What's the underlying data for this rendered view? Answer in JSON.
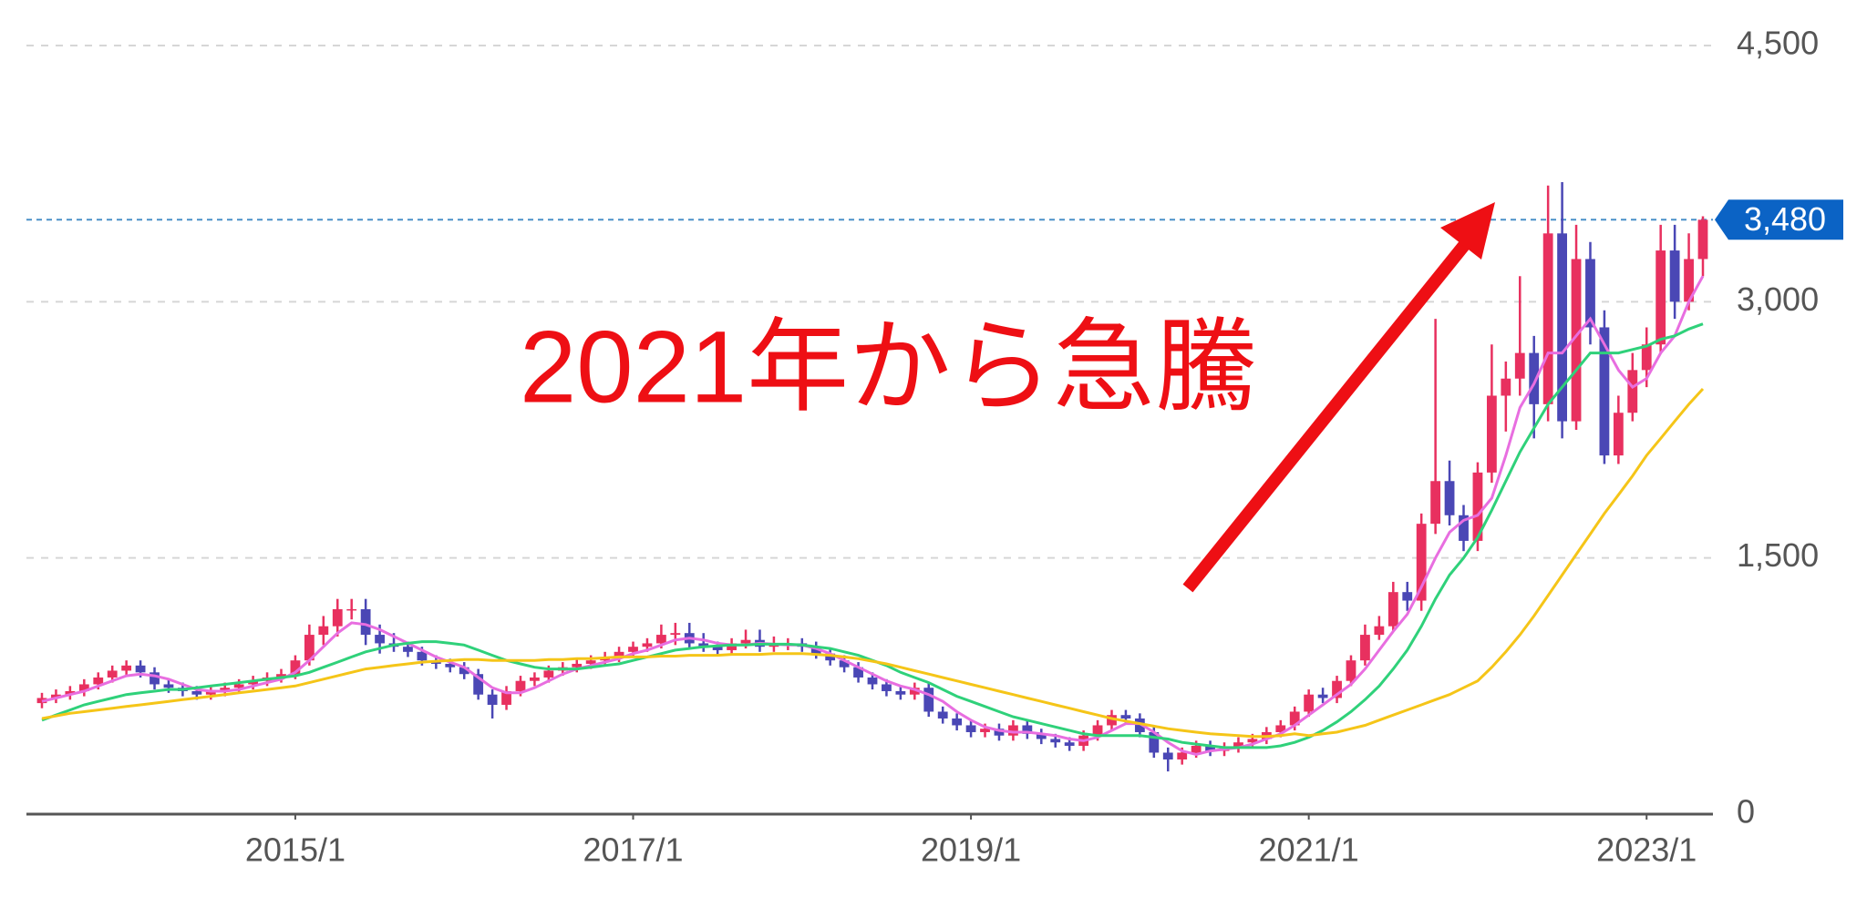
{
  "chart_data": {
    "type": "candlestick",
    "annotation": "2021年から急騰",
    "categories": [
      null,
      null,
      null,
      null,
      null,
      null,
      null,
      null,
      null,
      null,
      null,
      null,
      null,
      null,
      null,
      null,
      null,
      null,
      "2015/1",
      null,
      null,
      null,
      null,
      null,
      null,
      null,
      null,
      null,
      null,
      null,
      null,
      null,
      null,
      null,
      null,
      null,
      null,
      null,
      null,
      null,
      null,
      null,
      "2017/1",
      null,
      null,
      null,
      null,
      null,
      null,
      null,
      null,
      null,
      null,
      null,
      null,
      null,
      null,
      null,
      null,
      null,
      null,
      null,
      null,
      null,
      null,
      null,
      "2019/1",
      null,
      null,
      null,
      null,
      null,
      null,
      null,
      null,
      null,
      null,
      null,
      null,
      null,
      null,
      null,
      null,
      null,
      null,
      null,
      null,
      null,
      null,
      null,
      "2021/1",
      null,
      null,
      null,
      null,
      null,
      null,
      null,
      null,
      null,
      null,
      null,
      null,
      null,
      null,
      null,
      null,
      null,
      null,
      null,
      null,
      null,
      null,
      null,
      "2023/1",
      null,
      null,
      null,
      null
    ],
    "open": [
      650,
      680,
      700,
      720,
      760,
      800,
      840,
      870,
      830,
      760,
      740,
      720,
      700,
      720,
      740,
      760,
      780,
      800,
      820,
      900,
      1050,
      1100,
      1200,
      1200,
      1050,
      1000,
      980,
      950,
      900,
      880,
      860,
      820,
      700,
      640,
      720,
      780,
      800,
      840,
      860,
      880,
      900,
      920,
      950,
      980,
      1000,
      1050,
      1060,
      1000,
      980,
      960,
      1000,
      1020,
      980,
      990,
      1000,
      980,
      940,
      900,
      860,
      800,
      760,
      720,
      700,
      740,
      600,
      560,
      520,
      480,
      500,
      460,
      520,
      470,
      440,
      420,
      400,
      460,
      520,
      580,
      560,
      480,
      360,
      320,
      360,
      400,
      370,
      390,
      420,
      440,
      480,
      520,
      600,
      700,
      680,
      780,
      900,
      1050,
      1100,
      1300,
      1250,
      1700,
      1950,
      1750,
      1600,
      2000,
      2450,
      2550,
      2700,
      2400,
      3400,
      2300,
      3250,
      2850,
      2100,
      2350,
      2600,
      2750,
      3300,
      3000,
      3250
    ],
    "high": [
      710,
      730,
      750,
      790,
      830,
      870,
      900,
      900,
      860,
      790,
      770,
      750,
      750,
      770,
      790,
      810,
      830,
      850,
      930,
      1110,
      1160,
      1260,
      1260,
      1260,
      1110,
      1060,
      1010,
      980,
      930,
      910,
      890,
      850,
      730,
      750,
      810,
      830,
      870,
      890,
      910,
      930,
      950,
      980,
      1010,
      1030,
      1110,
      1120,
      1120,
      1060,
      1010,
      1030,
      1080,
      1080,
      1040,
      1030,
      1030,
      1010,
      970,
      930,
      890,
      830,
      790,
      750,
      770,
      770,
      630,
      590,
      550,
      530,
      530,
      550,
      550,
      500,
      470,
      450,
      490,
      550,
      610,
      610,
      590,
      510,
      390,
      390,
      430,
      430,
      420,
      450,
      470,
      510,
      550,
      630,
      730,
      740,
      810,
      930,
      1110,
      1160,
      1360,
      1360,
      1760,
      2900,
      2070,
      1810,
      2060,
      2750,
      2650,
      3150,
      2800,
      3680,
      3700,
      3450,
      3350,
      2950,
      2450,
      2700,
      2850,
      3450,
      3450,
      3400,
      3500
    ],
    "low": [
      620,
      650,
      670,
      690,
      730,
      770,
      810,
      800,
      730,
      710,
      690,
      670,
      670,
      690,
      710,
      730,
      750,
      770,
      790,
      870,
      990,
      1040,
      1140,
      990,
      940,
      950,
      920,
      870,
      850,
      830,
      790,
      670,
      560,
      610,
      690,
      750,
      770,
      810,
      830,
      850,
      870,
      890,
      920,
      950,
      970,
      990,
      970,
      950,
      930,
      930,
      970,
      950,
      950,
      960,
      950,
      910,
      870,
      830,
      770,
      730,
      690,
      670,
      670,
      570,
      530,
      490,
      450,
      450,
      430,
      430,
      440,
      410,
      390,
      370,
      370,
      430,
      490,
      530,
      450,
      330,
      250,
      290,
      330,
      340,
      340,
      360,
      390,
      410,
      450,
      490,
      570,
      650,
      650,
      750,
      870,
      1020,
      1070,
      1190,
      1190,
      1640,
      1690,
      1540,
      1540,
      1940,
      2240,
      2450,
      2200,
      2300,
      2200,
      2250,
      2750,
      2050,
      2050,
      2300,
      2500,
      2700,
      2900,
      2950,
      3150
    ],
    "close": [
      680,
      700,
      720,
      760,
      800,
      840,
      870,
      830,
      760,
      740,
      720,
      700,
      720,
      740,
      760,
      780,
      800,
      820,
      900,
      1050,
      1100,
      1200,
      1200,
      1050,
      1000,
      980,
      950,
      900,
      880,
      860,
      820,
      700,
      640,
      720,
      780,
      800,
      840,
      860,
      880,
      900,
      920,
      950,
      980,
      1000,
      1050,
      1060,
      1000,
      980,
      960,
      1000,
      1020,
      980,
      990,
      1000,
      980,
      940,
      900,
      860,
      800,
      760,
      720,
      700,
      740,
      600,
      560,
      520,
      480,
      500,
      460,
      520,
      470,
      440,
      420,
      400,
      460,
      520,
      580,
      560,
      480,
      360,
      320,
      360,
      400,
      370,
      390,
      420,
      440,
      480,
      520,
      600,
      700,
      680,
      780,
      900,
      1050,
      1100,
      1300,
      1250,
      1700,
      1950,
      1750,
      1600,
      2000,
      2450,
      2550,
      2700,
      2400,
      3400,
      2300,
      3250,
      2850,
      2100,
      2350,
      2600,
      2750,
      3300,
      3000,
      3250,
      3480
    ],
    "up_color": "#e8305f",
    "down_color": "#4a47b5",
    "series": [
      {
        "color": "#e86ee0",
        "values": [
          660,
          680,
          700,
          720,
          750,
          780,
          810,
          820,
          810,
          790,
          760,
          730,
          720,
          720,
          730,
          750,
          770,
          790,
          830,
          900,
          980,
          1060,
          1120,
          1110,
          1080,
          1040,
          1000,
          960,
          920,
          890,
          860,
          800,
          740,
          710,
          710,
          740,
          780,
          820,
          850,
          870,
          890,
          910,
          940,
          960,
          990,
          1020,
          1030,
          1020,
          1000,
          990,
          990,
          1000,
          995,
          990,
          990,
          970,
          940,
          900,
          860,
          820,
          780,
          750,
          730,
          700,
          660,
          600,
          550,
          510,
          490,
          480,
          480,
          470,
          460,
          440,
          430,
          450,
          490,
          530,
          530,
          480,
          420,
          370,
          350,
          370,
          380,
          390,
          410,
          440,
          470,
          520,
          580,
          640,
          700,
          760,
          850,
          960,
          1070,
          1170,
          1330,
          1500,
          1650,
          1720,
          1750,
          1850,
          2100,
          2380,
          2520,
          2700,
          2700,
          2800,
          2900,
          2750,
          2600,
          2500,
          2550,
          2700,
          2800,
          3000,
          3150
        ]
      },
      {
        "color": "#2fd17a",
        "values": [
          550,
          580,
          610,
          640,
          660,
          680,
          700,
          710,
          720,
          730,
          730,
          740,
          750,
          760,
          770,
          780,
          790,
          800,
          810,
          830,
          860,
          890,
          920,
          950,
          970,
          990,
          1000,
          1010,
          1010,
          1000,
          990,
          960,
          930,
          900,
          880,
          860,
          850,
          850,
          850,
          860,
          870,
          880,
          900,
          920,
          940,
          960,
          970,
          980,
          985,
          990,
          990,
          995,
          995,
          995,
          990,
          980,
          970,
          950,
          930,
          900,
          870,
          830,
          800,
          770,
          730,
          690,
          660,
          630,
          600,
          570,
          550,
          530,
          510,
          490,
          470,
          460,
          460,
          460,
          460,
          450,
          440,
          420,
          410,
          400,
          390,
          390,
          390,
          390,
          400,
          420,
          450,
          490,
          540,
          600,
          670,
          750,
          850,
          960,
          1100,
          1260,
          1400,
          1500,
          1620,
          1780,
          1950,
          2120,
          2260,
          2400,
          2500,
          2600,
          2700,
          2700,
          2700,
          2720,
          2740,
          2780,
          2800,
          2840,
          2870
        ]
      },
      {
        "color": "#f5c518",
        "values": [
          560,
          575,
          590,
          600,
          610,
          620,
          630,
          640,
          650,
          660,
          670,
          680,
          690,
          700,
          710,
          720,
          730,
          740,
          750,
          770,
          790,
          810,
          830,
          850,
          860,
          870,
          880,
          890,
          895,
          900,
          905,
          905,
          900,
          900,
          900,
          900,
          905,
          905,
          910,
          910,
          915,
          920,
          920,
          920,
          925,
          925,
          930,
          930,
          930,
          935,
          935,
          935,
          940,
          940,
          940,
          935,
          930,
          920,
          910,
          895,
          880,
          860,
          840,
          820,
          800,
          780,
          760,
          740,
          720,
          700,
          680,
          660,
          640,
          620,
          600,
          580,
          560,
          545,
          530,
          515,
          500,
          490,
          480,
          470,
          465,
          460,
          455,
          455,
          460,
          470,
          460,
          470,
          480,
          500,
          520,
          550,
          580,
          610,
          640,
          670,
          700,
          740,
          780,
          860,
          950,
          1050,
          1160,
          1280,
          1400,
          1520,
          1640,
          1760,
          1870,
          1980,
          2100,
          2200,
          2300,
          2400,
          2490
        ]
      }
    ],
    "ylim": [
      0,
      4500
    ],
    "yticks": [
      0,
      {
        "value": 1500,
        "label": "1,500"
      },
      {
        "value": 3000,
        "label": "3,000"
      },
      {
        "value": 4500,
        "label": "4,500"
      }
    ],
    "grid": true,
    "last_price": {
      "value": 3480,
      "label": "3,480"
    }
  }
}
